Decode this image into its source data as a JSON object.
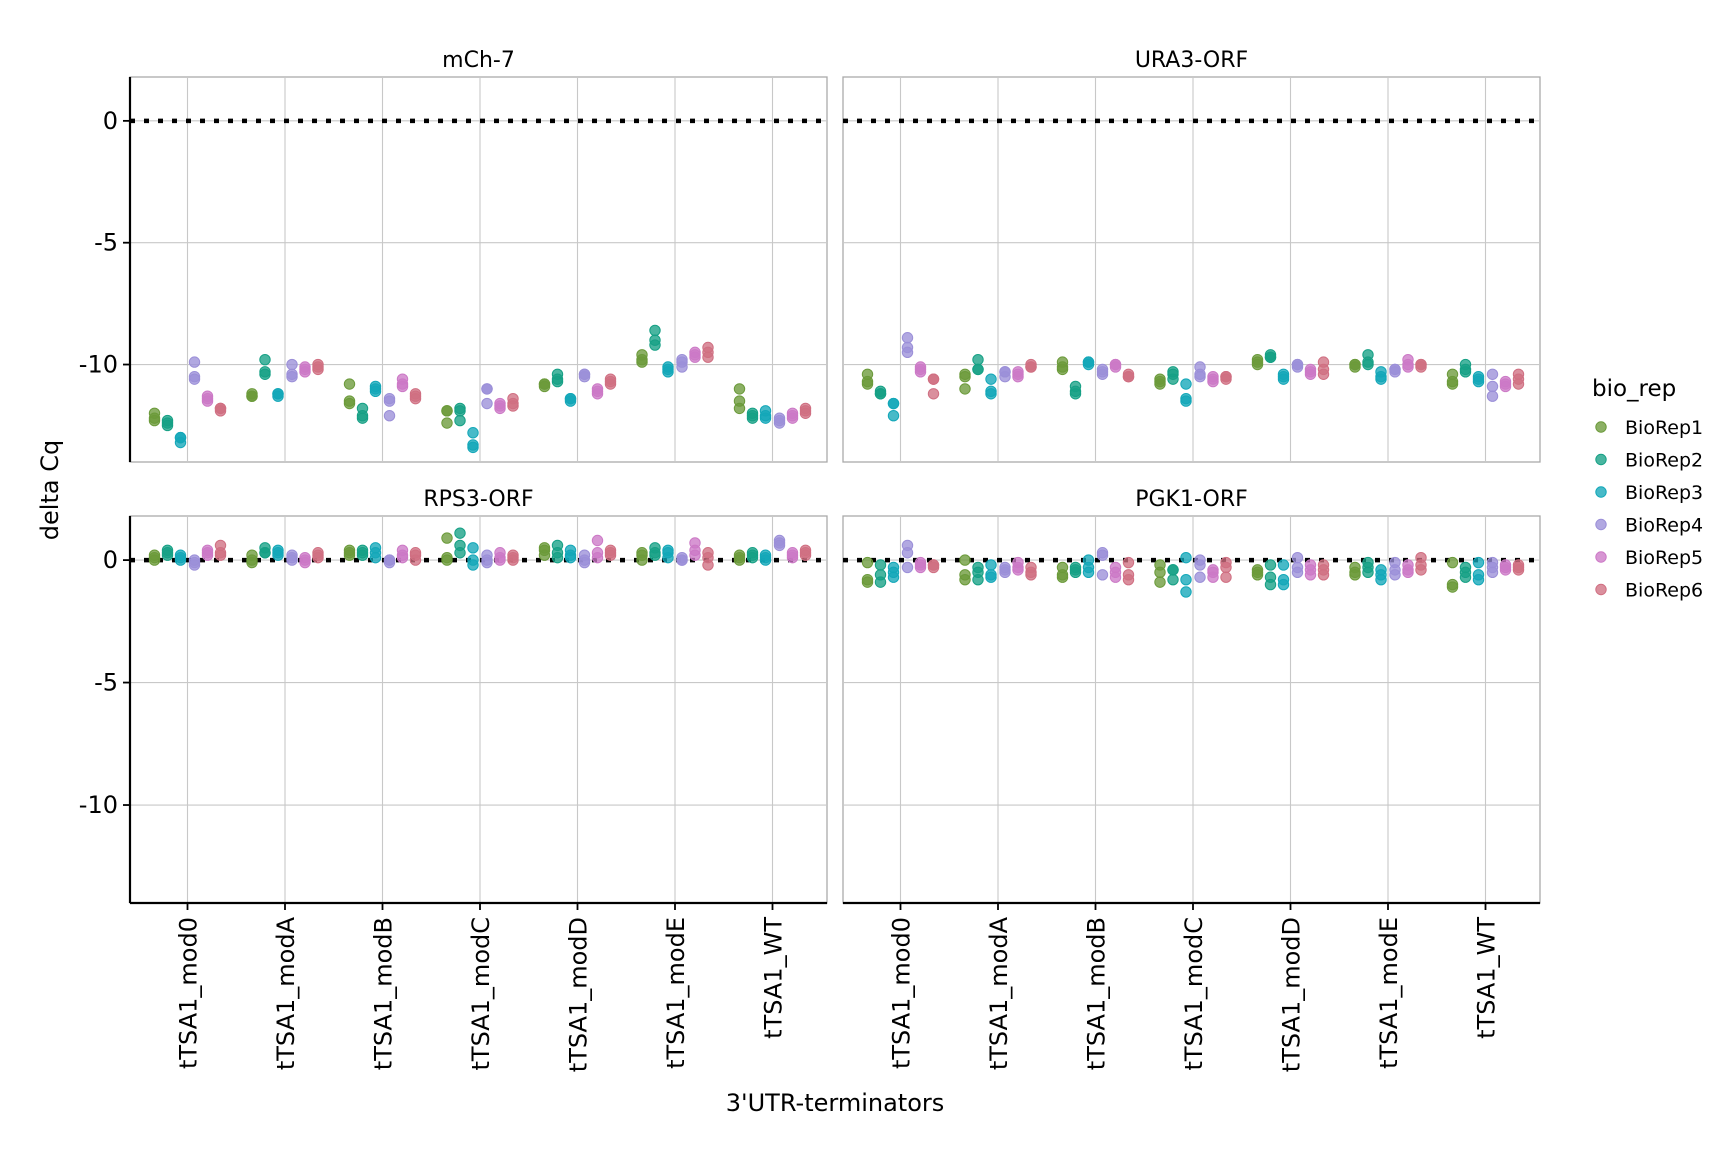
{
  "chart_data": {
    "type": "scatter",
    "xlabel": "3'UTR-terminators",
    "ylabel": "delta Cq",
    "categories": [
      "tTSA1_mod0",
      "tTSA1_modA",
      "tTSA1_modB",
      "tTSA1_modC",
      "tTSA1_modD",
      "tTSA1_modE",
      "tTSA1_WT"
    ],
    "ylim": [
      -14,
      1.8
    ],
    "yticks": [
      0,
      -5,
      -10
    ],
    "ytick_labels": [
      "0",
      "-5",
      "-10"
    ],
    "reference_line": 0,
    "grid": true,
    "legend": {
      "title": "bio_rep",
      "position": "right",
      "entries": [
        "BioRep1",
        "BioRep2",
        "BioRep3",
        "BioRep4",
        "BioRep5",
        "BioRep6"
      ],
      "colors": [
        "#6b9a3a",
        "#16a085",
        "#13a7b8",
        "#9b8fd8",
        "#cc79c6",
        "#d06f82"
      ]
    },
    "panels": [
      {
        "title": "mCh-7",
        "values": [
          [
            [
              -12.0,
              -12.3,
              -12.2
            ],
            [
              -12.4,
              -12.5,
              -12.3
            ],
            [
              -13.0,
              -13.2,
              -13.0
            ],
            [
              -9.9,
              -10.5,
              -10.6
            ],
            [
              -11.3,
              -11.4,
              -11.5
            ],
            [
              -11.8,
              -11.9,
              -11.8
            ]
          ],
          [
            [
              -11.3,
              -11.2,
              -11.3
            ],
            [
              -9.8,
              -10.4,
              -10.3
            ],
            [
              -11.2,
              -11.3,
              -11.2
            ],
            [
              -10.0,
              -10.4,
              -10.5
            ],
            [
              -10.2,
              -10.3,
              -10.1
            ],
            [
              -10.1,
              -10.0,
              -10.2
            ]
          ],
          [
            [
              -10.8,
              -11.5,
              -11.6
            ],
            [
              -11.8,
              -12.1,
              -12.2
            ],
            [
              -10.9,
              -11.0,
              -11.1
            ],
            [
              -11.4,
              -12.1,
              -11.5
            ],
            [
              -10.6,
              -10.8,
              -10.9
            ],
            [
              -11.2,
              -11.4,
              -11.3
            ]
          ],
          [
            [
              -11.9,
              -12.4,
              -11.9
            ],
            [
              -11.8,
              -12.3,
              -11.9
            ],
            [
              -12.8,
              -13.4,
              -13.3
            ],
            [
              -11.0,
              -11.6,
              -11.0
            ],
            [
              -11.7,
              -11.8,
              -11.6
            ],
            [
              -11.4,
              -11.7,
              -11.6
            ]
          ],
          [
            [
              -10.8,
              -10.9,
              -10.8
            ],
            [
              -10.4,
              -10.6,
              -10.7
            ],
            [
              -11.4,
              -11.5,
              -11.4
            ],
            [
              -10.4,
              -10.5,
              -10.4
            ],
            [
              -11.0,
              -11.2,
              -11.1
            ],
            [
              -10.6,
              -10.8,
              -10.7
            ]
          ],
          [
            [
              -9.6,
              -9.8,
              -9.9
            ],
            [
              -8.6,
              -9.0,
              -9.2
            ],
            [
              -10.1,
              -10.3,
              -10.2
            ],
            [
              -9.8,
              -10.1,
              -9.9
            ],
            [
              -9.5,
              -9.7,
              -9.6
            ],
            [
              -9.3,
              -9.7,
              -9.5
            ]
          ],
          [
            [
              -11.0,
              -11.5,
              -11.8
            ],
            [
              -12.0,
              -12.2,
              -12.1
            ],
            [
              -11.9,
              -12.2,
              -12.1
            ],
            [
              -12.2,
              -12.4,
              -12.3
            ],
            [
              -12.0,
              -12.2,
              -12.1
            ],
            [
              -11.8,
              -12.0,
              -11.9
            ]
          ]
        ]
      },
      {
        "title": "URA3-ORF",
        "values": [
          [
            [
              -10.4,
              -10.7,
              -10.8
            ],
            [
              -11.2,
              -11.1,
              -11.2
            ],
            [
              -11.6,
              -12.1,
              -11.6
            ],
            [
              -8.9,
              -9.3,
              -9.5
            ],
            [
              -10.1,
              -10.3,
              -10.2
            ],
            [
              -10.6,
              -11.2,
              -10.6
            ]
          ],
          [
            [
              -10.4,
              -10.5,
              -11.0
            ],
            [
              -9.8,
              -10.2,
              -10.2
            ],
            [
              -10.6,
              -11.1,
              -11.2
            ],
            [
              -10.3,
              -10.5,
              -10.3
            ],
            [
              -10.4,
              -10.5,
              -10.3
            ],
            [
              -10.0,
              -10.1,
              -10.1
            ]
          ],
          [
            [
              -9.9,
              -10.2,
              -10.1
            ],
            [
              -10.9,
              -11.1,
              -11.2
            ],
            [
              -9.9,
              -10.0,
              -9.9
            ],
            [
              -10.3,
              -10.4,
              -10.2
            ],
            [
              -10.0,
              -10.0,
              -10.1
            ],
            [
              -10.4,
              -10.5,
              -10.5
            ]
          ],
          [
            [
              -10.6,
              -10.8,
              -10.7
            ],
            [
              -10.3,
              -10.6,
              -10.4
            ],
            [
              -10.8,
              -11.4,
              -11.5
            ],
            [
              -10.1,
              -10.5,
              -10.4
            ],
            [
              -10.5,
              -10.7,
              -10.6
            ],
            [
              -10.5,
              -10.6,
              -10.5
            ]
          ],
          [
            [
              -9.8,
              -10.0,
              -9.9
            ],
            [
              -9.6,
              -9.7,
              -9.7
            ],
            [
              -10.4,
              -10.5,
              -10.6
            ],
            [
              -10.0,
              -10.1,
              -10.0
            ],
            [
              -10.2,
              -10.4,
              -10.3
            ],
            [
              -9.9,
              -10.2,
              -10.4
            ]
          ],
          [
            [
              -10.0,
              -10.1,
              -10.0
            ],
            [
              -9.6,
              -9.9,
              -10.0
            ],
            [
              -10.3,
              -10.6,
              -10.5
            ],
            [
              -10.2,
              -10.3,
              -10.2
            ],
            [
              -9.8,
              -10.1,
              -10.0
            ],
            [
              -10.0,
              -10.1,
              -10.0
            ]
          ],
          [
            [
              -10.4,
              -10.7,
              -10.8
            ],
            [
              -10.0,
              -10.3,
              -10.2
            ],
            [
              -10.5,
              -10.7,
              -10.6
            ],
            [
              -10.4,
              -10.9,
              -11.3
            ],
            [
              -10.7,
              -10.9,
              -10.8
            ],
            [
              -10.4,
              -10.6,
              -10.8
            ]
          ]
        ]
      },
      {
        "title": "RPS3-ORF",
        "values": [
          [
            [
              0.1,
              0.2,
              0.0
            ],
            [
              0.2,
              0.4,
              0.3
            ],
            [
              0.0,
              0.2,
              0.1
            ],
            [
              -0.1,
              -0.2,
              0.0
            ],
            [
              0.2,
              0.4,
              0.3
            ],
            [
              0.2,
              0.6,
              0.3
            ]
          ],
          [
            [
              0.0,
              0.2,
              -0.1
            ],
            [
              0.3,
              0.5,
              0.3
            ],
            [
              0.2,
              0.4,
              0.3
            ],
            [
              0.1,
              0.2,
              0.0
            ],
            [
              0.0,
              0.1,
              -0.1
            ],
            [
              0.1,
              0.3,
              0.2
            ]
          ],
          [
            [
              0.2,
              0.4,
              0.3
            ],
            [
              0.3,
              0.2,
              0.4
            ],
            [
              0.1,
              0.5,
              0.3
            ],
            [
              0.0,
              -0.1,
              0.0
            ],
            [
              0.2,
              0.4,
              0.1
            ],
            [
              0.0,
              0.2,
              0.3
            ]
          ],
          [
            [
              0.9,
              0.0,
              0.1
            ],
            [
              0.3,
              0.6,
              1.1
            ],
            [
              0.5,
              0.0,
              -0.2
            ],
            [
              0.0,
              0.2,
              -0.1
            ],
            [
              0.1,
              0.3,
              0.0
            ],
            [
              0.2,
              0.1,
              0.0
            ]
          ],
          [
            [
              0.2,
              0.5,
              0.4
            ],
            [
              0.3,
              0.6,
              0.1
            ],
            [
              0.2,
              0.4,
              0.1
            ],
            [
              0.0,
              0.2,
              -0.1
            ],
            [
              0.8,
              0.3,
              0.1
            ],
            [
              0.2,
              0.4,
              0.3
            ]
          ],
          [
            [
              0.3,
              0.2,
              0.0
            ],
            [
              0.2,
              0.5,
              0.3
            ],
            [
              0.1,
              0.3,
              0.4
            ],
            [
              0.0,
              0.1,
              0.0
            ],
            [
              0.7,
              0.4,
              0.2
            ],
            [
              0.1,
              0.3,
              -0.2
            ]
          ],
          [
            [
              0.1,
              0.0,
              0.2
            ],
            [
              0.2,
              0.3,
              0.1
            ],
            [
              0.0,
              0.2,
              0.1
            ],
            [
              0.8,
              0.7,
              0.6
            ],
            [
              0.3,
              0.1,
              0.2
            ],
            [
              0.4,
              0.3,
              0.2
            ]
          ]
        ]
      },
      {
        "title": "PGK1-ORF",
        "values": [
          [
            [
              -0.8,
              -0.9,
              -0.1
            ],
            [
              -0.2,
              -0.6,
              -0.9
            ],
            [
              -0.3,
              -0.5,
              -0.7
            ],
            [
              0.6,
              0.3,
              -0.3
            ],
            [
              -0.2,
              -0.1,
              -0.3
            ],
            [
              -0.2,
              -0.3,
              -0.2
            ]
          ],
          [
            [
              -0.6,
              -0.8,
              0.0
            ],
            [
              -0.3,
              -0.5,
              -0.8
            ],
            [
              -0.2,
              -0.6,
              -0.7
            ],
            [
              -0.4,
              -0.5,
              -0.3
            ],
            [
              -0.1,
              -0.3,
              -0.4
            ],
            [
              -0.3,
              -0.6,
              -0.5
            ]
          ],
          [
            [
              -0.3,
              -0.6,
              -0.7
            ],
            [
              -0.4,
              -0.5,
              -0.3
            ],
            [
              0.0,
              -0.3,
              -0.5
            ],
            [
              0.3,
              -0.6,
              0.2
            ],
            [
              -0.3,
              -0.5,
              -0.7
            ],
            [
              -0.1,
              -0.6,
              -0.8
            ]
          ],
          [
            [
              -0.2,
              -0.5,
              -0.9
            ],
            [
              -0.4,
              -0.8,
              -0.4
            ],
            [
              0.1,
              -0.8,
              -1.3
            ],
            [
              -0.2,
              -0.7,
              0.0
            ],
            [
              -0.4,
              -0.5,
              -0.7
            ],
            [
              -0.1,
              -0.3,
              -0.7
            ]
          ],
          [
            [
              -0.4,
              -0.6,
              -0.5
            ],
            [
              -0.2,
              -0.7,
              -1.0
            ],
            [
              -0.2,
              -0.8,
              -1.0
            ],
            [
              0.1,
              -0.3,
              -0.5
            ],
            [
              -0.2,
              -0.4,
              -0.6
            ],
            [
              -0.2,
              -0.4,
              -0.6
            ]
          ],
          [
            [
              -0.3,
              -0.5,
              -0.6
            ],
            [
              -0.1,
              -0.3,
              -0.5
            ],
            [
              -0.4,
              -0.6,
              -0.8
            ],
            [
              -0.1,
              -0.4,
              -0.6
            ],
            [
              -0.2,
              -0.4,
              -0.5
            ],
            [
              0.1,
              -0.2,
              -0.4
            ]
          ],
          [
            [
              -0.1,
              -1.0,
              -1.1
            ],
            [
              -0.3,
              -0.5,
              -0.7
            ],
            [
              -0.1,
              -0.6,
              -0.8
            ],
            [
              -0.1,
              -0.3,
              -0.5
            ],
            [
              -0.2,
              -0.3,
              -0.4
            ],
            [
              -0.2,
              -0.3,
              -0.4
            ]
          ]
        ]
      }
    ]
  }
}
